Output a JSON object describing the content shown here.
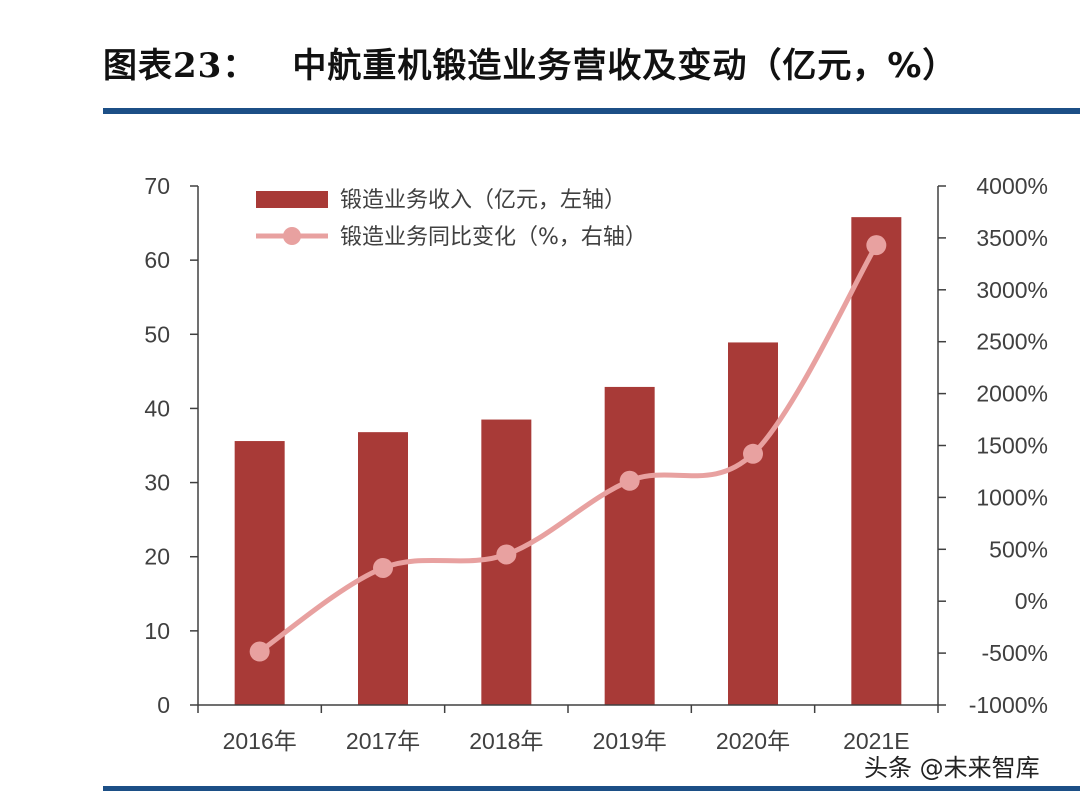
{
  "page": {
    "title_prefix": "图表",
    "title_number": "23：",
    "title_text": "中航重机锻造业务营收及变动（亿元，%）",
    "watermark": "头条 @未来智库"
  },
  "colors": {
    "bar": "#a83a37",
    "line": "#e8a1a0",
    "axis": "#404040",
    "rule": "#1c4f86"
  },
  "chart_data": {
    "type": "bar",
    "categories": [
      "2016年",
      "2017年",
      "2018年",
      "2019年",
      "2020年",
      "2021E"
    ],
    "series": [
      {
        "name": "锻造业务收入（亿元，左轴）",
        "type": "bar",
        "axis": "left",
        "values": [
          35.6,
          36.8,
          38.5,
          42.9,
          48.9,
          65.8
        ]
      },
      {
        "name": "锻造业务同比变化（%，右轴）",
        "type": "line",
        "axis": "right",
        "values": [
          -485,
          320,
          450,
          1160,
          1420,
          3430
        ]
      }
    ],
    "y_left": {
      "ylim": [
        0,
        70
      ],
      "ticks": [
        "0",
        "10",
        "20",
        "30",
        "40",
        "50",
        "60",
        "70"
      ]
    },
    "y_right": {
      "ylim": [
        -1000,
        4000
      ],
      "ticks": [
        "-1000%",
        "-500%",
        "0%",
        "500%",
        "1000%",
        "1500%",
        "2000%",
        "2500%",
        "3000%",
        "3500%",
        "4000%"
      ]
    },
    "legend_position": "top-left",
    "grid": false
  }
}
